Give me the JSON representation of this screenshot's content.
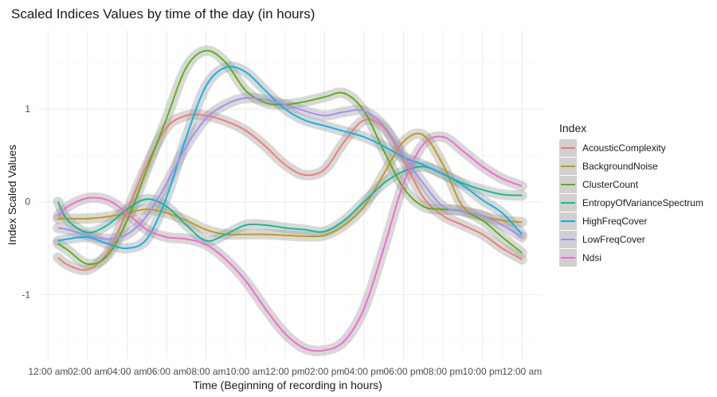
{
  "chart_data": {
    "type": "line",
    "title": "Scaled Indices Values by time of the day (in hours)",
    "xlabel": "Time (Beginning of recording in hours)",
    "ylabel": "Index Scaled Values",
    "x_tick_labels": [
      "12:00 am",
      "02:00 am",
      "04:00 am",
      "06:00 am",
      "08:00 am",
      "10:00 am",
      "12:00 pm",
      "02:00 pm",
      "04:00 pm",
      "06:00 pm",
      "08:00 pm",
      "10:00 pm",
      "12:00 am"
    ],
    "x_tick_hours": [
      0,
      2,
      4,
      6,
      8,
      10,
      12,
      14,
      16,
      18,
      20,
      22,
      24
    ],
    "xlim": [
      -0.5,
      25
    ],
    "y_ticks": [
      -1,
      0,
      1
    ],
    "ylim": [
      -1.7,
      1.85
    ],
    "grid": true,
    "confidence_band": true,
    "legend": {
      "title": "Index",
      "position": "right"
    },
    "x": [
      0.5,
      1,
      2,
      3,
      4,
      5,
      6,
      7,
      8,
      9,
      10,
      11,
      12,
      13,
      14,
      15,
      16,
      17,
      18,
      19,
      20,
      21,
      22,
      23,
      24
    ],
    "series": [
      {
        "name": "AcousticComplexity",
        "color": "#F8766D",
        "values": [
          -0.6,
          -0.68,
          -0.73,
          -0.55,
          -0.1,
          0.4,
          0.8,
          0.93,
          0.93,
          0.87,
          0.77,
          0.6,
          0.4,
          0.29,
          0.35,
          0.65,
          0.88,
          0.8,
          0.45,
          0.05,
          -0.15,
          -0.25,
          -0.35,
          -0.5,
          -0.62
        ]
      },
      {
        "name": "BackgroundNoise",
        "color": "#C49A00",
        "values": [
          -0.18,
          -0.18,
          -0.18,
          -0.16,
          -0.12,
          -0.08,
          -0.12,
          -0.2,
          -0.3,
          -0.35,
          -0.35,
          -0.35,
          -0.36,
          -0.37,
          -0.36,
          -0.25,
          -0.05,
          0.3,
          0.65,
          0.72,
          0.4,
          -0.05,
          -0.15,
          -0.2,
          -0.22
        ]
      },
      {
        "name": "ClusterCount",
        "color": "#53B400",
        "values": [
          -0.45,
          -0.52,
          -0.67,
          -0.58,
          -0.2,
          0.35,
          0.9,
          1.45,
          1.63,
          1.5,
          1.2,
          1.07,
          1.05,
          1.08,
          1.13,
          1.17,
          0.98,
          0.55,
          0.15,
          -0.05,
          -0.08,
          -0.1,
          -0.2,
          -0.38,
          -0.55
        ]
      },
      {
        "name": "EntropyOfVarianceSpectrum",
        "color": "#00C094",
        "values": [
          0,
          -0.2,
          -0.33,
          -0.25,
          -0.08,
          0.03,
          -0.05,
          -0.25,
          -0.42,
          -0.35,
          -0.25,
          -0.25,
          -0.28,
          -0.3,
          -0.32,
          -0.2,
          0,
          0.2,
          0.33,
          0.38,
          0.3,
          0.2,
          0.13,
          0.08,
          0.07
        ]
      },
      {
        "name": "HighFreqCover",
        "color": "#00B6EB",
        "values": [
          -0.42,
          -0.4,
          -0.38,
          -0.45,
          -0.5,
          -0.4,
          0.05,
          0.7,
          1.25,
          1.45,
          1.4,
          1.2,
          1.0,
          0.88,
          0.82,
          0.76,
          0.7,
          0.6,
          0.48,
          0.4,
          0.3,
          0.18,
          0.02,
          -0.12,
          -0.35
        ]
      },
      {
        "name": "LowFreqCover",
        "color": "#A58AFF",
        "values": [
          -0.28,
          -0.3,
          -0.36,
          -0.4,
          -0.35,
          -0.15,
          0.2,
          0.6,
          0.9,
          1.05,
          1.12,
          1.1,
          1.05,
          0.98,
          0.93,
          0.97,
          0.98,
          0.82,
          0.5,
          0.2,
          -0.05,
          -0.1,
          -0.15,
          -0.25,
          -0.38
        ]
      },
      {
        "name": "Ndsi",
        "color": "#FB61D7",
        "values": [
          -0.15,
          -0.05,
          0.04,
          0.02,
          -0.12,
          -0.3,
          -0.38,
          -0.4,
          -0.46,
          -0.62,
          -0.85,
          -1.15,
          -1.42,
          -1.58,
          -1.6,
          -1.5,
          -1.15,
          -0.5,
          0.2,
          0.62,
          0.7,
          0.55,
          0.38,
          0.25,
          0.17
        ]
      }
    ]
  }
}
